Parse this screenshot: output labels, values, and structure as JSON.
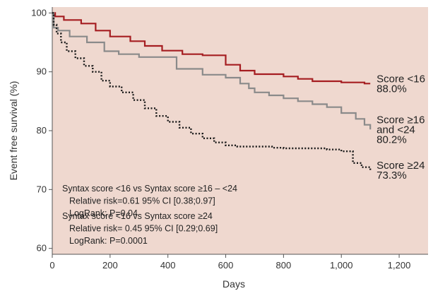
{
  "chart_data": {
    "type": "line",
    "title": "",
    "xlabel": "Days",
    "ylabel": "Event free survival (%)",
    "xlim": [
      0,
      1300
    ],
    "ylim": [
      59,
      101
    ],
    "xticks": [
      0,
      200,
      400,
      600,
      800,
      1000,
      1200
    ],
    "xtick_labels": [
      "0",
      "200",
      "400",
      "600",
      "800",
      "1,000",
      "1,200"
    ],
    "yticks": [
      60,
      70,
      80,
      90,
      100
    ],
    "ytick_labels": [
      "60",
      "70",
      "80",
      "90",
      "100"
    ],
    "grid": false,
    "background_color": "#efd8cf",
    "series": [
      {
        "color": "#a51d21",
        "style": "solid",
        "end_label": [
          "Score <16",
          "88.0%"
        ],
        "x": [
          0,
          10,
          40,
          100,
          150,
          200,
          270,
          320,
          380,
          450,
          520,
          600,
          650,
          700,
          750,
          800,
          850,
          900,
          950,
          1000,
          1050,
          1080,
          1100
        ],
        "y": [
          100,
          99.4,
          98.8,
          98.2,
          97,
          96,
          95.2,
          94.4,
          93.6,
          93,
          92.8,
          91.2,
          90.2,
          89.6,
          89.6,
          89.2,
          88.8,
          88.4,
          88.4,
          88.2,
          88.2,
          88,
          88
        ]
      },
      {
        "color": "#8a8a8a",
        "style": "solid",
        "end_label": [
          "Score ≥16",
          "and <24",
          "80.2%"
        ],
        "x": [
          0,
          5,
          20,
          60,
          120,
          180,
          230,
          300,
          380,
          430,
          520,
          600,
          650,
          680,
          700,
          750,
          800,
          850,
          900,
          950,
          1000,
          1050,
          1080,
          1100
        ],
        "y": [
          100,
          97.5,
          97,
          96,
          95,
          93.5,
          93,
          92.5,
          92.5,
          90.5,
          89.5,
          89,
          88,
          87.2,
          86.5,
          86,
          85.5,
          85,
          84.5,
          84,
          83,
          82,
          81,
          80.2
        ]
      },
      {
        "color": "#1a1a1a",
        "style": "dotted",
        "end_label": [
          "Score ≥24",
          "73.3%"
        ],
        "x": [
          0,
          5,
          15,
          30,
          50,
          80,
          110,
          140,
          170,
          200,
          240,
          280,
          320,
          360,
          400,
          440,
          480,
          520,
          560,
          600,
          640,
          700,
          760,
          800,
          850,
          900,
          950,
          1000,
          1040,
          1070,
          1100
        ],
        "y": [
          100,
          98,
          96.5,
          95,
          93.5,
          92.3,
          91,
          90,
          88.5,
          87.5,
          86.5,
          85.2,
          83.8,
          82.5,
          81.5,
          80.5,
          79.5,
          78.7,
          78,
          77.5,
          77.3,
          77.3,
          77.1,
          77,
          77,
          77,
          76.8,
          76.5,
          74.5,
          73.8,
          73.3
        ]
      }
    ],
    "annotations": [
      {
        "lines": [
          "Syntax score <16 vs Syntax score ≥16 – <24",
          "Relative risk=0.61 95% CI [0.38;0.97]",
          "LogRank: P=0.04"
        ]
      },
      {
        "lines": [
          "Syntax score <16 vs Syntax score ≥24",
          "Relative risk= 0.45 95% CI [0.29;0.69]",
          "LogRank: P=0.0001"
        ]
      }
    ]
  }
}
